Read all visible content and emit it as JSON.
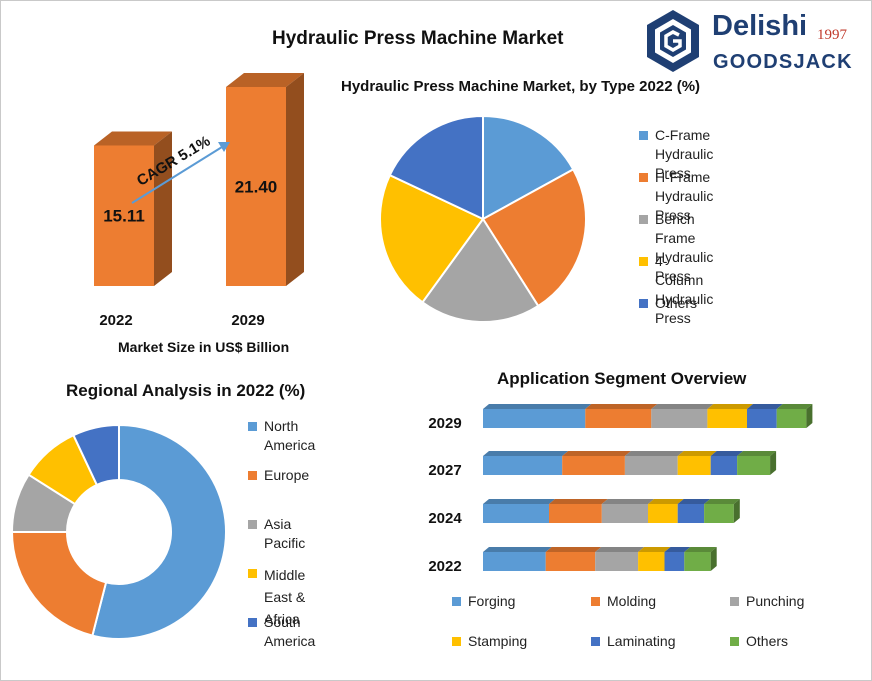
{
  "title": "Hydraulic Press Machine Market",
  "logo": {
    "brand_top": "Delishi",
    "year": "1997",
    "brand_bottom": "GOODSJACK",
    "colors": {
      "navy": "#1f3f73",
      "red": "#c0392b"
    }
  },
  "chart_data": [
    {
      "type": "bar",
      "categories": [
        "2022",
        "2029"
      ],
      "values": [
        15.11,
        21.4
      ],
      "value_labels": [
        "15.11",
        "21.40"
      ],
      "xlabel": "Market Size in US$ Billion",
      "annotation": "CAGR 5.1%",
      "color": "#ed7d31"
    },
    {
      "type": "pie",
      "title": "Hydraulic Press Machine Market, by Type 2022 (%)",
      "labels": [
        "C-Frame Hydraulic Press",
        "H-Frame Hydraulic Press",
        "Bench Frame Hydraulic Press",
        "4-Column Hydraulic Press",
        "Others"
      ],
      "values": [
        17,
        24,
        19,
        22,
        18
      ],
      "colors": [
        "#5b9bd5",
        "#ed7d31",
        "#a5a5a5",
        "#ffc000",
        "#4472c4"
      ],
      "legend_position": "right"
    },
    {
      "type": "pie",
      "variant": "donut",
      "title": "Regional Analysis in 2022 (%)",
      "labels": [
        "North America",
        "Europe",
        "Asia Pacific",
        "Middle East & Africa",
        "South America"
      ],
      "label_lines": [
        [
          "North America"
        ],
        [
          "Europe"
        ],
        [
          "Asia Pacific"
        ],
        [
          "Middle East &",
          "Africa"
        ],
        [
          "South America"
        ]
      ],
      "values": [
        54,
        21,
        9,
        9,
        7
      ],
      "colors": [
        "#5b9bd5",
        "#ed7d31",
        "#a5a5a5",
        "#ffc000",
        "#4472c4"
      ],
      "legend_position": "right"
    },
    {
      "type": "bar",
      "variant": "stacked-horizontal",
      "title": "Application Segment Overview",
      "categories": [
        "2029",
        "2027",
        "2024",
        "2022"
      ],
      "series": [
        {
          "name": "Forging",
          "values": [
            31,
            24,
            20,
            19
          ]
        },
        {
          "name": "Molding",
          "values": [
            20,
            19,
            16,
            15
          ]
        },
        {
          "name": "Punching",
          "values": [
            17,
            16,
            14,
            13
          ]
        },
        {
          "name": "Stamping",
          "values": [
            12,
            10,
            9,
            8
          ]
        },
        {
          "name": "Laminating",
          "values": [
            9,
            8,
            8,
            6
          ]
        },
        {
          "name": "Others",
          "values": [
            9,
            10,
            9,
            8
          ]
        }
      ],
      "colors": [
        "#5b9bd5",
        "#ed7d31",
        "#a5a5a5",
        "#ffc000",
        "#4472c4",
        "#70ad47"
      ],
      "legend_position": "bottom"
    }
  ]
}
